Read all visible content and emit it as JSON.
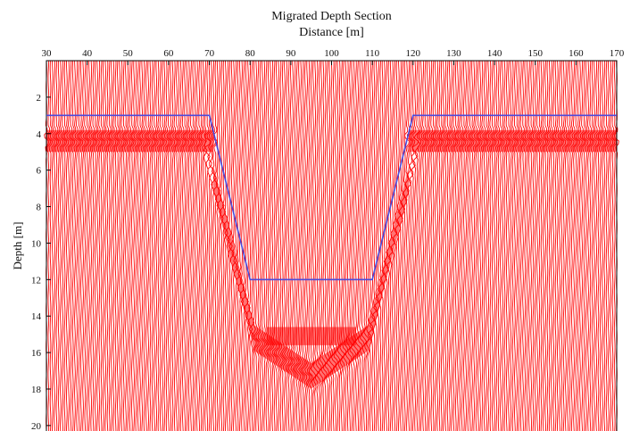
{
  "chart_data": {
    "type": "line",
    "title": "Migrated Depth Section",
    "xlabel": "Distance [m]",
    "ylabel": "Depth [m]",
    "xlim": [
      30,
      170
    ],
    "ylim": [
      0,
      20.3
    ],
    "y_inverted": true,
    "x_axis_position": "top",
    "xticks": [
      30,
      40,
      50,
      60,
      70,
      80,
      90,
      100,
      110,
      120,
      130,
      140,
      150,
      160,
      170
    ],
    "yticks": [
      2,
      4,
      6,
      8,
      10,
      12,
      14,
      16,
      18,
      20
    ],
    "grid": false,
    "series": [
      {
        "color": "#4a4adc",
        "x": [
          30,
          70,
          80,
          110,
          120,
          170
        ],
        "y": [
          3,
          3,
          12,
          12,
          3,
          3
        ]
      }
    ],
    "background_traces": {
      "color": "#ff0000",
      "trace_spacing_m": 0.5,
      "reflector_depth_m": 4.3,
      "basin_bottom_depth_m": 15.2
    }
  }
}
